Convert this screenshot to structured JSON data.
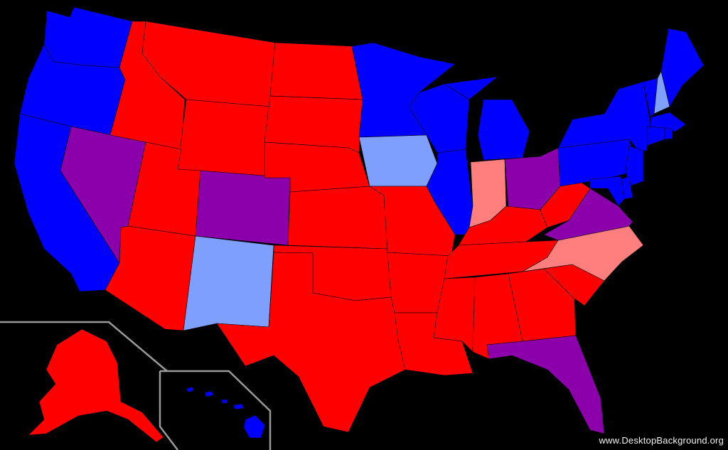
{
  "colors": {
    "background": "#000000",
    "strong_red": "#FF0000",
    "light_red": "#FF7F7F",
    "purple": "#8B00AA",
    "light_blue": "#7F9FFF",
    "strong_blue": "#0000FF",
    "inset_border": "#9A9A9A"
  },
  "states": [
    {
      "id": "WA",
      "color": "strong_blue"
    },
    {
      "id": "OR",
      "color": "strong_blue"
    },
    {
      "id": "CA",
      "color": "strong_blue"
    },
    {
      "id": "NV",
      "color": "purple"
    },
    {
      "id": "ID",
      "color": "strong_red"
    },
    {
      "id": "MT",
      "color": "strong_red"
    },
    {
      "id": "WY",
      "color": "strong_red"
    },
    {
      "id": "UT",
      "color": "strong_red"
    },
    {
      "id": "AZ",
      "color": "strong_red"
    },
    {
      "id": "CO",
      "color": "purple"
    },
    {
      "id": "NM",
      "color": "light_blue"
    },
    {
      "id": "ND",
      "color": "strong_red"
    },
    {
      "id": "SD",
      "color": "strong_red"
    },
    {
      "id": "NE",
      "color": "strong_red"
    },
    {
      "id": "KS",
      "color": "strong_red"
    },
    {
      "id": "OK",
      "color": "strong_red"
    },
    {
      "id": "TX",
      "color": "strong_red"
    },
    {
      "id": "MN",
      "color": "strong_blue"
    },
    {
      "id": "IA",
      "color": "light_blue"
    },
    {
      "id": "MO",
      "color": "strong_red"
    },
    {
      "id": "AR",
      "color": "strong_red"
    },
    {
      "id": "LA",
      "color": "strong_red"
    },
    {
      "id": "WI",
      "color": "strong_blue"
    },
    {
      "id": "IL",
      "color": "strong_blue"
    },
    {
      "id": "MI",
      "color": "strong_blue"
    },
    {
      "id": "IN",
      "color": "light_red"
    },
    {
      "id": "OH",
      "color": "purple"
    },
    {
      "id": "KY",
      "color": "strong_red"
    },
    {
      "id": "TN",
      "color": "strong_red"
    },
    {
      "id": "MS",
      "color": "strong_red"
    },
    {
      "id": "AL",
      "color": "strong_red"
    },
    {
      "id": "GA",
      "color": "strong_red"
    },
    {
      "id": "FL",
      "color": "purple"
    },
    {
      "id": "SC",
      "color": "strong_red"
    },
    {
      "id": "NC",
      "color": "light_red"
    },
    {
      "id": "VA",
      "color": "purple"
    },
    {
      "id": "WV",
      "color": "strong_red"
    },
    {
      "id": "PA",
      "color": "strong_blue"
    },
    {
      "id": "NY",
      "color": "strong_blue"
    },
    {
      "id": "VT",
      "color": "strong_blue"
    },
    {
      "id": "NH",
      "color": "light_blue"
    },
    {
      "id": "ME",
      "color": "strong_blue"
    },
    {
      "id": "MA",
      "color": "strong_blue"
    },
    {
      "id": "CT",
      "color": "strong_blue"
    },
    {
      "id": "RI",
      "color": "strong_blue"
    },
    {
      "id": "NJ",
      "color": "strong_blue"
    },
    {
      "id": "DE",
      "color": "strong_blue"
    },
    {
      "id": "MD",
      "color": "strong_blue"
    },
    {
      "id": "AK",
      "color": "strong_red"
    },
    {
      "id": "HI",
      "color": "strong_blue"
    }
  ],
  "watermark": "www.DesktopBackground.org"
}
